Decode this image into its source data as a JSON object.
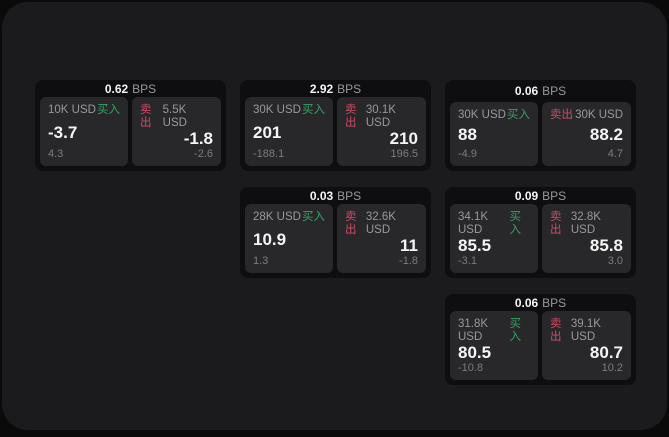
{
  "labels": {
    "bps": "BPS",
    "buy": "买入",
    "sell": "卖出"
  },
  "colors": {
    "background": "#0a0a0a",
    "panel": "#1b1b1d",
    "card": "#0e0e10",
    "tile": "#28282b",
    "buy_green": "#34a265",
    "sell_red": "#d04a63",
    "text_primary": "#f5f5f5",
    "text_secondary": "#98989d",
    "text_dim": "#7c7c80"
  },
  "cards": [
    {
      "bps": "0.62",
      "buy": {
        "amount": "10K USD",
        "value": "-3.7",
        "delta": "4.3"
      },
      "sell": {
        "amount": "5.5K USD",
        "value": "-1.8",
        "delta": "-2.6"
      }
    },
    {
      "bps": "2.92",
      "buy": {
        "amount": "30K USD",
        "value": "201",
        "delta": "-188.1"
      },
      "sell": {
        "amount": "30.1K USD",
        "value": "210",
        "delta": "196.5"
      }
    },
    {
      "bps": "0.06",
      "buy": {
        "amount": "30K USD",
        "value": "88",
        "delta": "-4.9"
      },
      "sell": {
        "amount": "30K USD",
        "value": "88.2",
        "delta": "4.7"
      }
    },
    {
      "bps": "0.03",
      "buy": {
        "amount": "28K USD",
        "value": "10.9",
        "delta": "1.3"
      },
      "sell": {
        "amount": "32.6K USD",
        "value": "11",
        "delta": "-1.8"
      }
    },
    {
      "bps": "0.09",
      "buy": {
        "amount": "34.1K USD",
        "value": "85.5",
        "delta": "-3.1"
      },
      "sell": {
        "amount": "32.8K USD",
        "value": "85.8",
        "delta": "3.0"
      }
    },
    {
      "bps": "0.06",
      "buy": {
        "amount": "31.8K USD",
        "value": "80.5",
        "delta": "-10.8"
      },
      "sell": {
        "amount": "39.1K USD",
        "value": "80.7",
        "delta": "10.2"
      }
    }
  ]
}
